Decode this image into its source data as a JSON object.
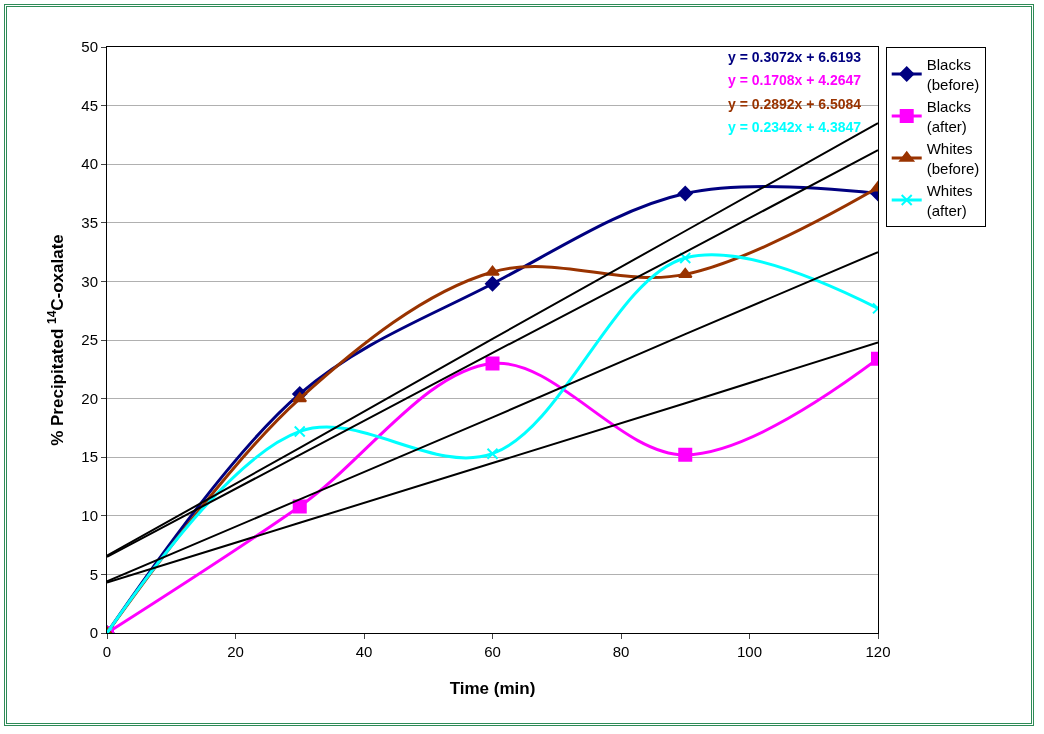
{
  "chart_data": {
    "type": "line",
    "xlabel": "Time (min)",
    "ylabel": "% Precipitated $^{14}$C-oxalate",
    "x": [
      0,
      30,
      60,
      90,
      120
    ],
    "series": [
      {
        "name": "Blacks (before)",
        "color": "#000080",
        "marker": "diamond",
        "values": [
          0,
          20.4,
          29.8,
          37.5,
          37.5
        ]
      },
      {
        "name": "Blacks (after)",
        "color": "#ff00ff",
        "marker": "square",
        "values": [
          0,
          10.8,
          23,
          15.2,
          23.4
        ]
      },
      {
        "name": "Whites (before)",
        "color": "#993300",
        "marker": "triangle",
        "values": [
          0,
          20,
          30.8,
          30.6,
          38
        ]
      },
      {
        "name": "Whites (after)",
        "color": "#00ffff",
        "marker": "cross",
        "values": [
          0,
          17.2,
          15.3,
          32,
          27.7
        ]
      },
      {
        "color": "#000000",
        "marker": "none",
        "values": [
          6.6,
          15.8,
          25.1,
          34.3,
          43.5
        ]
      },
      {
        "color": "#000000",
        "marker": "none",
        "values": [
          4.3,
          9.4,
          14.5,
          19.6,
          24.8
        ]
      },
      {
        "color": "#000000",
        "marker": "none",
        "values": [
          6.5,
          15.2,
          23.9,
          32.5,
          41.2
        ]
      },
      {
        "color": "#000000",
        "marker": "none",
        "values": [
          4.4,
          11.4,
          18.4,
          25.5,
          32.5
        ]
      }
    ],
    "annotations": [
      "y = 0.3072x + 6.6193",
      "y = 0.1708x + 4.2647",
      "y = 0.2892x + 6.5084",
      "y = 0.2342x + 4.3847"
    ],
    "xlim": [
      0,
      120
    ],
    "xticks": [
      0,
      20,
      40,
      60,
      80,
      100,
      120
    ],
    "ylim": [
      0,
      50
    ],
    "yticks": [
      0,
      5,
      10,
      15,
      20,
      25,
      30,
      35,
      40,
      45,
      50
    ],
    "grid": "y",
    "legend": "top right"
  }
}
